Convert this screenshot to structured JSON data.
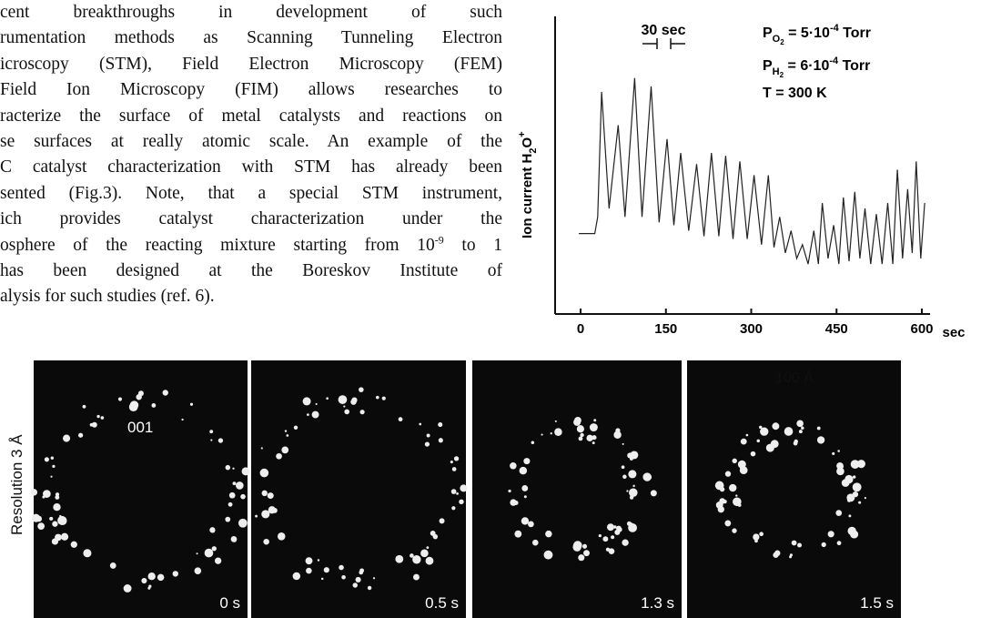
{
  "paragraph": {
    "lines": [
      [
        "cent breakthroughs in development of such"
      ],
      [
        "rumentation methods as Scanning Tunneling Electron"
      ],
      [
        "icroscopy (STM), Field Electron Microscopy (FEM)"
      ],
      [
        "Field Ion Microscopy (FIM) allows researches to"
      ],
      [
        "racterize the surface of metal catalysts and reactions on"
      ],
      [
        "se surfaces at really atomic scale. An example of the"
      ],
      [
        "C catalyst characterization with STM has already been"
      ],
      [
        "sented (Fig.3). Note, that a special STM instrument,"
      ],
      [
        "ich provides catalyst characterization under the"
      ],
      [
        "osphere of the reacting mixture starting from 10",
        "-9",
        " to 1"
      ],
      [
        "has been designed at the Boreskov Institute of"
      ],
      [
        "alysis for such studies (ref. 6)."
      ]
    ]
  },
  "chart_data": {
    "type": "line",
    "y_label": [
      "Ion current  H",
      "2",
      "O",
      "+"
    ],
    "x_label": "sec",
    "annotations": {
      "interval": "30 sec",
      "p_o2": [
        "P",
        "O",
        "2",
        " = 5·10",
        "-4",
        "  Torr"
      ],
      "p_h2": [
        "P",
        "H",
        "2",
        " = 6·10",
        "-4",
        "  Torr"
      ],
      "temperature": "T = 300 K"
    },
    "xlim": [
      -45,
      610
    ],
    "ylim": [
      0,
      100
    ],
    "xticks": [
      0,
      150,
      300,
      450,
      600
    ],
    "color": "#222222",
    "series": [
      {
        "name": null,
        "x": [
          -3,
          25,
          30,
          37,
          50,
          66,
          78,
          95,
          108,
          124,
          138,
          152,
          164,
          176,
          190,
          204,
          217,
          230,
          243,
          255,
          268,
          280,
          293,
          305,
          318,
          330,
          340,
          350,
          360,
          370,
          380,
          390,
          400,
          410,
          418,
          425,
          435,
          445,
          454,
          462,
          472,
          482,
          491,
          500,
          510,
          520,
          530,
          540,
          549,
          557,
          566,
          575,
          583,
          590,
          598,
          605
        ],
        "values": [
          29,
          29,
          35,
          80,
          38,
          68,
          35,
          85,
          35,
          82,
          33,
          63,
          32,
          58,
          30,
          54,
          28,
          58,
          28,
          57,
          27,
          55,
          27,
          50,
          25,
          50,
          24,
          35,
          22,
          30,
          20,
          25,
          18,
          30,
          18,
          40,
          20,
          32,
          18,
          42,
          19,
          44,
          20,
          38,
          18,
          36,
          18,
          40,
          18,
          52,
          20,
          45,
          22,
          55,
          20,
          40
        ]
      }
    ]
  },
  "figure": {
    "side_label": "Resolution 3 Å",
    "scale_bar": "100 Å",
    "panels": [
      {
        "time": "0 s",
        "face": "001"
      },
      {
        "time": "0.5 s"
      },
      {
        "time": "1.3 s"
      },
      {
        "time": "1.5 s"
      }
    ]
  }
}
